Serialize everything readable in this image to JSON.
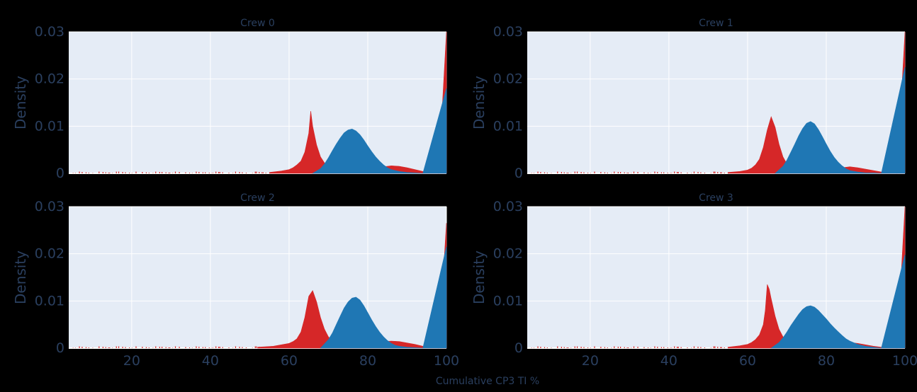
{
  "chart_data": {
    "type": "area",
    "layout": "2x2 subplots sharing x-axis",
    "shared_xlabel": "Cumulative CP3 TI %",
    "ylabel": "Density",
    "xlim": [
      4,
      100
    ],
    "ylim": [
      0,
      0.03
    ],
    "xticks": [
      "20",
      "40",
      "60",
      "80",
      "100"
    ],
    "yticks": [
      "0",
      "0.01",
      "0.02",
      "0.03"
    ],
    "grid": true,
    "legend": "none",
    "colors": {
      "red": "#d62728",
      "blue": "#1f77b4",
      "plot_bg": "#e5ecf6",
      "page_bg": "#000000",
      "text": "#2a3f5f"
    },
    "panels": [
      {
        "title": "Crew 0",
        "series": [
          {
            "color": "red",
            "x": [
              55,
              58,
              60,
              61,
              62,
              63,
              64,
              65,
              65.5,
              66,
              67,
              68,
              69,
              70,
              71,
              72,
              74,
              76,
              78,
              80,
              82,
              84,
              86,
              88,
              90,
              92,
              94,
              96,
              98,
              100
            ],
            "y": [
              0.0002,
              0.0005,
              0.0008,
              0.0012,
              0.0018,
              0.0026,
              0.0045,
              0.0085,
              0.0132,
              0.01,
              0.006,
              0.0035,
              0.0022,
              0.0015,
              0.0011,
              0.0009,
              0.0008,
              0.0008,
              0.0009,
              0.001,
              0.0012,
              0.0014,
              0.0016,
              0.0015,
              0.0012,
              0.0008,
              0.0004,
              0.0001,
              0,
              0.03
            ]
          },
          {
            "color": "blue",
            "x": [
              66,
              68,
              69,
              70,
              71,
              72,
              73,
              74,
              75,
              76,
              77,
              78,
              79,
              80,
              81,
              82,
              83,
              84,
              85,
              86,
              88,
              90,
              92,
              94,
              100
            ],
            "y": [
              0,
              0.001,
              0.002,
              0.0033,
              0.0048,
              0.0062,
              0.0075,
              0.0086,
              0.0092,
              0.0094,
              0.009,
              0.0082,
              0.0071,
              0.0058,
              0.0046,
              0.0035,
              0.0026,
              0.0018,
              0.0012,
              0.0008,
              0.0004,
              0.0002,
              0.0001,
              0,
              0.018
            ]
          }
        ]
      },
      {
        "title": "Crew 1",
        "series": [
          {
            "color": "red",
            "x": [
              55,
              58,
              60,
              61,
              62,
              63,
              64,
              65,
              66,
              67,
              68,
              69,
              70,
              71,
              72,
              74,
              76,
              78,
              80,
              82,
              84,
              86,
              88,
              90,
              92,
              94,
              96,
              98,
              100
            ],
            "y": [
              0.0002,
              0.0004,
              0.0007,
              0.0011,
              0.0018,
              0.003,
              0.0055,
              0.0092,
              0.012,
              0.0098,
              0.0062,
              0.0035,
              0.002,
              0.0012,
              0.0008,
              0.0006,
              0.0006,
              0.0007,
              0.0008,
              0.001,
              0.0012,
              0.0014,
              0.0012,
              0.0009,
              0.0006,
              0.0003,
              0.0001,
              0,
              0.03
            ]
          },
          {
            "color": "blue",
            "x": [
              67,
              69,
              70,
              71,
              72,
              73,
              74,
              75,
              76,
              77,
              78,
              79,
              80,
              81,
              82,
              83,
              84,
              85,
              86,
              88,
              90,
              92,
              94,
              100
            ],
            "y": [
              0,
              0.0015,
              0.0028,
              0.0045,
              0.0062,
              0.008,
              0.0095,
              0.0106,
              0.011,
              0.0105,
              0.0093,
              0.0078,
              0.0062,
              0.0047,
              0.0034,
              0.0024,
              0.0016,
              0.001,
              0.0006,
              0.0003,
              0.0001,
              0.0001,
              0,
              0.0225
            ]
          }
        ]
      },
      {
        "title": "Crew 2",
        "series": [
          {
            "color": "red",
            "x": [
              52,
              56,
              58,
              60,
              61,
              62,
              63,
              64,
              65,
              66,
              67,
              68,
              69,
              70,
              71,
              72,
              74,
              76,
              78,
              80,
              82,
              84,
              86,
              88,
              90,
              92,
              94,
              96,
              98,
              100
            ],
            "y": [
              0.0002,
              0.0004,
              0.0007,
              0.001,
              0.0014,
              0.002,
              0.0034,
              0.0065,
              0.011,
              0.0122,
              0.0098,
              0.0065,
              0.004,
              0.0024,
              0.0015,
              0.001,
              0.0008,
              0.0008,
              0.0009,
              0.001,
              0.0012,
              0.0014,
              0.0015,
              0.0014,
              0.0011,
              0.0008,
              0.0004,
              0.0001,
              0,
              0.0265
            ]
          },
          {
            "color": "blue",
            "x": [
              68,
              70,
              71,
              72,
              73,
              74,
              75,
              76,
              77,
              78,
              79,
              80,
              81,
              82,
              83,
              84,
              85,
              86,
              87,
              88,
              90,
              92,
              94,
              100
            ],
            "y": [
              0,
              0.0018,
              0.0032,
              0.005,
              0.0068,
              0.0085,
              0.0098,
              0.0106,
              0.0108,
              0.0102,
              0.009,
              0.0075,
              0.006,
              0.0046,
              0.0034,
              0.0024,
              0.0016,
              0.001,
              0.0006,
              0.0004,
              0.0002,
              0.0001,
              0,
              0.0215
            ]
          }
        ]
      },
      {
        "title": "Crew 3",
        "series": [
          {
            "color": "red",
            "x": [
              55,
              58,
              60,
              61,
              62,
              63,
              64,
              64.5,
              65,
              65.5,
              66,
              67,
              68,
              69,
              70,
              72,
              74,
              76,
              78,
              80,
              82,
              84,
              86,
              88,
              90,
              92,
              94,
              96,
              98,
              100
            ],
            "y": [
              0.0002,
              0.0005,
              0.0008,
              0.0012,
              0.0018,
              0.0028,
              0.005,
              0.008,
              0.0135,
              0.0125,
              0.0105,
              0.0068,
              0.004,
              0.0024,
              0.0015,
              0.001,
              0.0009,
              0.001,
              0.0011,
              0.0012,
              0.0013,
              0.0014,
              0.0012,
              0.001,
              0.0007,
              0.0004,
              0.0002,
              0.0001,
              0,
              0.03
            ]
          },
          {
            "color": "blue",
            "x": [
              66,
              68,
              69,
              70,
              71,
              72,
              73,
              74,
              75,
              76,
              77,
              78,
              79,
              80,
              81,
              82,
              83,
              84,
              85,
              86,
              88,
              90,
              92,
              94,
              100
            ],
            "y": [
              0,
              0.0012,
              0.0022,
              0.0034,
              0.0048,
              0.006,
              0.0072,
              0.0082,
              0.0088,
              0.009,
              0.0087,
              0.008,
              0.0071,
              0.0062,
              0.0052,
              0.0043,
              0.0035,
              0.0027,
              0.002,
              0.0015,
              0.0008,
              0.0004,
              0.0002,
              0,
              0.0198
            ]
          }
        ]
      }
    ]
  }
}
